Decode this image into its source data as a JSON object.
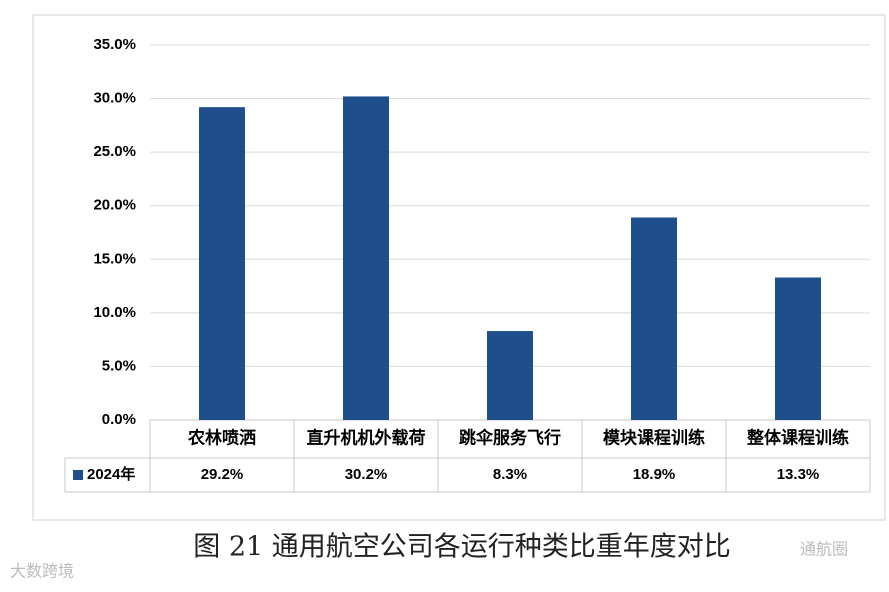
{
  "chart_data": {
    "type": "bar",
    "caption": "图 21 通用航空公司各运行种类比重年度对比",
    "categories": [
      "农林喷洒",
      "直升机机外载荷",
      "跳伞服务飞行",
      "模块课程训练",
      "整体课程训练"
    ],
    "series": [
      {
        "name": "2024年",
        "color": "#1f4e8c",
        "values": [
          29.2,
          30.2,
          8.3,
          18.9,
          13.3
        ],
        "value_labels": [
          "29.2%",
          "30.2%",
          "8.3%",
          "18.9%",
          "13.3%"
        ]
      }
    ],
    "ylim": [
      0,
      35
    ],
    "yticks": [
      {
        "value": 0,
        "label": "0.0%"
      },
      {
        "value": 5,
        "label": "5.0%"
      },
      {
        "value": 10,
        "label": "10.0%"
      },
      {
        "value": 15,
        "label": "15.0%"
      },
      {
        "value": 20,
        "label": "20.0%"
      },
      {
        "value": 25,
        "label": "25.0%"
      },
      {
        "value": 30,
        "label": "30.0%"
      },
      {
        "value": 35,
        "label": "35.0%"
      }
    ],
    "grid": true,
    "watermarks": [
      "大数跨境",
      "通航圈"
    ]
  }
}
